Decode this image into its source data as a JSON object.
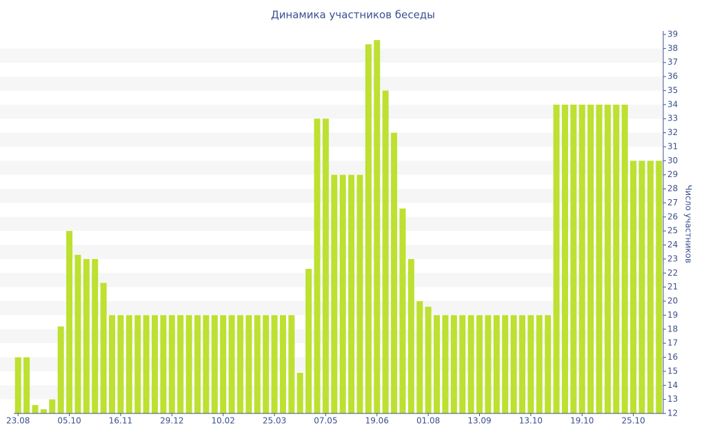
{
  "chart_data": {
    "type": "bar",
    "title": "Динамика участников беседы",
    "y_label": "Число участников",
    "categories": [
      "23.08",
      null,
      null,
      null,
      null,
      null,
      "05.10",
      null,
      null,
      null,
      null,
      null,
      "16.11",
      null,
      null,
      null,
      null,
      null,
      "29.12",
      null,
      null,
      null,
      null,
      null,
      "10.02",
      null,
      null,
      null,
      null,
      null,
      "25.03",
      null,
      null,
      null,
      null,
      null,
      "07.05",
      null,
      null,
      null,
      null,
      null,
      "19.06",
      null,
      null,
      null,
      null,
      null,
      "01.08",
      null,
      null,
      null,
      null,
      null,
      "13.09",
      null,
      null,
      null,
      null,
      null,
      "13.10",
      null,
      null,
      null,
      null,
      null,
      "19.10",
      null,
      null,
      null,
      null,
      null,
      "25.10",
      null,
      null,
      null
    ],
    "values": [
      16,
      16,
      12.6,
      12.3,
      13,
      18.2,
      25,
      23.3,
      23,
      23,
      21.3,
      19,
      19,
      19,
      19,
      19,
      19,
      19,
      19,
      19,
      19,
      19,
      19,
      19,
      19,
      19,
      19,
      19,
      19,
      19,
      19,
      19,
      19,
      14.9,
      22.3,
      33,
      33,
      29,
      29,
      29,
      29,
      38.3,
      38.6,
      35,
      32,
      26.6,
      23,
      20,
      19.6,
      19,
      19,
      19,
      19,
      19,
      19,
      19,
      19,
      19,
      19,
      19,
      19,
      19,
      19,
      34,
      34,
      34,
      34,
      34,
      34,
      34,
      34,
      34,
      30,
      30,
      30,
      30
    ],
    "color": "#bde031",
    "ylim": [
      12,
      39
    ],
    "yticks": [
      12,
      13,
      14,
      15,
      16,
      17,
      18,
      19,
      20,
      21,
      22,
      23,
      24,
      25,
      26,
      27,
      28,
      29,
      30,
      31,
      32,
      33,
      34,
      35,
      36,
      37,
      38,
      39
    ],
    "grid": true,
    "y_axis_side": "right"
  }
}
